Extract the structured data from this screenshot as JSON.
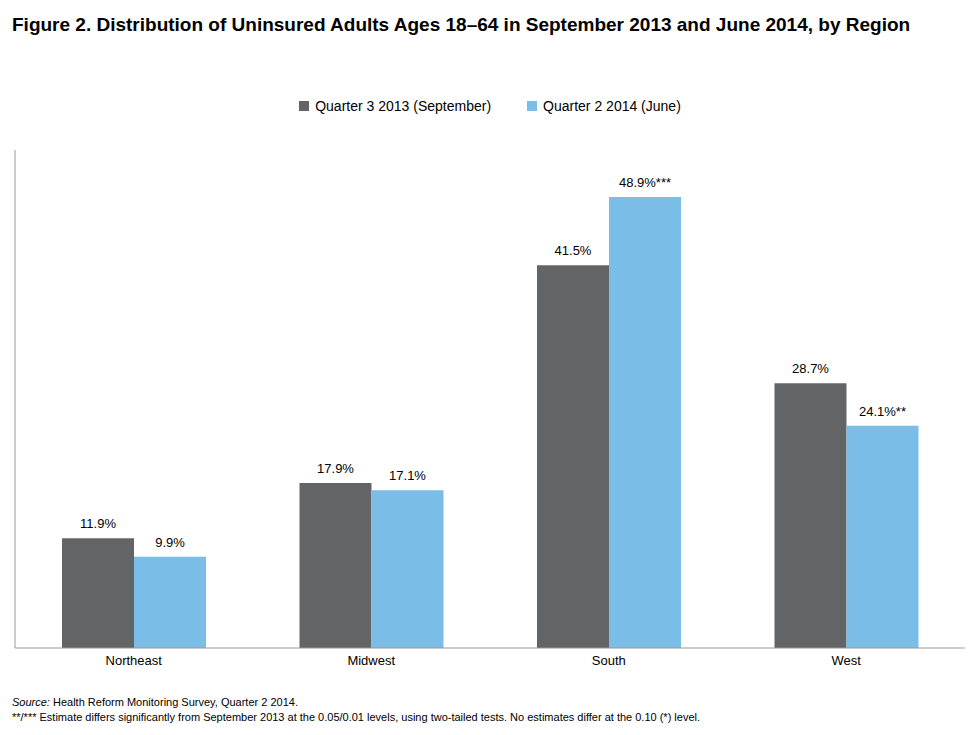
{
  "chart_data": {
    "type": "bar",
    "title": "Figure 2.  Distribution of Uninsured Adults Ages 18–64 in September 2013 and June 2014, by Region",
    "categories": [
      "Northeast",
      "Midwest",
      "South",
      "West"
    ],
    "series": [
      {
        "name": "Quarter 3 2013 (September)",
        "color": "#636466",
        "values": [
          11.9,
          17.9,
          41.5,
          28.7
        ],
        "value_labels": [
          "11.9%",
          "17.9%",
          "41.5%",
          "28.7%"
        ]
      },
      {
        "name": "Quarter 2 2014 (June)",
        "color": "#7abde6",
        "values": [
          9.9,
          17.1,
          48.9,
          24.1
        ],
        "value_labels": [
          "9.9%",
          "17.1%",
          "48.9%***",
          "24.1%**"
        ]
      }
    ],
    "ylim": [
      0,
      54
    ],
    "tick_labels": "x",
    "grid": false,
    "legend": "top",
    "data_labels": true,
    "source": "Source: Health Reform Monitoring Survey, Quarter 2 2014.",
    "note": "**/*** Estimate differs significantly from September 2013 at the 0.05/0.01 levels, using two-tailed tests. No estimates differ at the 0.10 (*) level."
  }
}
